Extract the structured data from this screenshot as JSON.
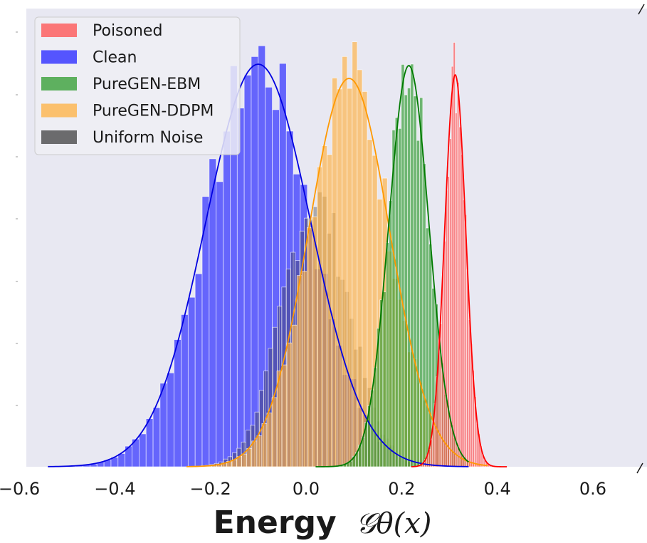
{
  "chart_data": {
    "type": "histogram",
    "xlabel": "Energy",
    "xlabel_math": "𝒢θ(x)",
    "xlim": [
      -0.6,
      0.7
    ],
    "xticks": [
      -0.6,
      -0.4,
      -0.2,
      0.0,
      0.2,
      0.4,
      0.6
    ],
    "xtick_labels": [
      "−0.6",
      "−0.4",
      "−0.2",
      "0.0",
      "0.2",
      "0.4",
      "0.6"
    ],
    "ylim": [
      0,
      1.0
    ],
    "grid": false,
    "legend_position": "top-left",
    "kde_overlay": true,
    "series": [
      {
        "name": "Clean",
        "color": "#4040ff",
        "line_color": "#0000e0",
        "alpha": 0.78,
        "mean": -0.1,
        "std": 0.11,
        "range": [
          -0.54,
          0.34
        ],
        "bins": 60
      },
      {
        "name": "Uniform Noise",
        "color": "#333333",
        "line_color": "#333333",
        "alpha": 0.35,
        "mean": 0.02,
        "std": 0.07,
        "range": [
          -0.22,
          0.25
        ],
        "bins": 50,
        "no_kde": true
      },
      {
        "name": "PureGEN-DDPM",
        "color": "#ffb040",
        "line_color": "#ff9900",
        "alpha": 0.65,
        "mean": 0.09,
        "std": 0.085,
        "range": [
          -0.25,
          0.38
        ],
        "bins": 60
      },
      {
        "name": "PureGEN-EBM",
        "color": "#2e9b2e",
        "line_color": "#007a00",
        "alpha": 0.65,
        "mean": 0.215,
        "std": 0.042,
        "range": [
          0.02,
          0.34
        ],
        "bins": 50
      },
      {
        "name": "Poisoned",
        "color": "#ff4d4d",
        "line_color": "#ff0000",
        "alpha": 0.65,
        "mean": 0.312,
        "std": 0.022,
        "range": [
          0.22,
          0.42
        ],
        "bins": 50
      }
    ],
    "legend_order": [
      "Poisoned",
      "Clean",
      "PureGEN-EBM",
      "PureGEN-DDPM",
      "Uniform Noise"
    ]
  }
}
